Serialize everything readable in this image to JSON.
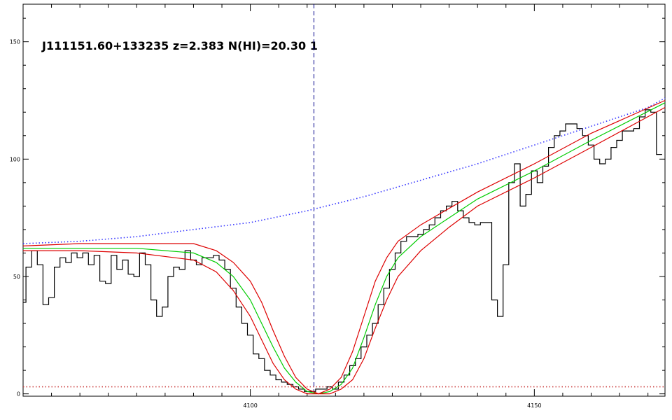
{
  "chart_data": {
    "type": "line",
    "title": "J111151.60+133235 z=2.383 N(HI)=20.30 1",
    "xlabel": "",
    "ylabel": "",
    "xlim": [
      4060,
      4173
    ],
    "ylim": [
      -1,
      166
    ],
    "grid": false,
    "x_ticks": [
      4100,
      4150
    ],
    "y_ticks": [
      0,
      50,
      100,
      150
    ],
    "marker_line": {
      "x": 4111.2,
      "style": "dashed",
      "color": "#00008b"
    },
    "series": [
      {
        "kind": "flux-histogram",
        "color": "#000000",
        "x": [
          4060,
          4061,
          4062,
          4063,
          4064,
          4065,
          4066,
          4067,
          4068,
          4069,
          4070,
          4071,
          4072,
          4073,
          4074,
          4075,
          4076,
          4077,
          4078,
          4079,
          4080,
          4081,
          4082,
          4083,
          4084,
          4085,
          4086,
          4087,
          4088,
          4089,
          4090,
          4091,
          4092,
          4093,
          4094,
          4095,
          4096,
          4097,
          4098,
          4099,
          4100,
          4101,
          4102,
          4103,
          4104,
          4105,
          4106,
          4107,
          4108,
          4109,
          4110,
          4111,
          4112,
          4113,
          4114,
          4115,
          4116,
          4117,
          4118,
          4119,
          4120,
          4121,
          4122,
          4123,
          4124,
          4125,
          4126,
          4127,
          4128,
          4129,
          4130,
          4131,
          4132,
          4133,
          4134,
          4135,
          4136,
          4137,
          4138,
          4139,
          4140,
          4141,
          4142,
          4143,
          4144,
          4145,
          4146,
          4147,
          4148,
          4149,
          4150,
          4151,
          4152,
          4153,
          4154,
          4155,
          4156,
          4157,
          4158,
          4159,
          4160,
          4161,
          4162,
          4163,
          4164,
          4165,
          4166,
          4167,
          4168,
          4169,
          4170,
          4171,
          4172
        ],
        "y": [
          39,
          54,
          61,
          55,
          38,
          41,
          54,
          58,
          56,
          60,
          58,
          60,
          55,
          59,
          48,
          47,
          59,
          53,
          57,
          51,
          50,
          60,
          55,
          40,
          33,
          37,
          50,
          54,
          53,
          61,
          57,
          55,
          58,
          58,
          59,
          57,
          53,
          45,
          37,
          30,
          25,
          17,
          15,
          10,
          8,
          6,
          5,
          4,
          3,
          2,
          1,
          1,
          2,
          2,
          3,
          2,
          5,
          8,
          12,
          15,
          20,
          25,
          30,
          38,
          45,
          53,
          60,
          65,
          67,
          67,
          68,
          70,
          72,
          75,
          78,
          80,
          82,
          78,
          75,
          73,
          72,
          73,
          73,
          40,
          33,
          55,
          90,
          98,
          80,
          85,
          95,
          90,
          97,
          105,
          110,
          112,
          115,
          115,
          113,
          110,
          106,
          100,
          98,
          100,
          105,
          108,
          112,
          112,
          113,
          118,
          121,
          120,
          102
        ],
        "x_dec": 4060,
        "note": "step histogram of observed flux; values estimated from gridlines"
      },
      {
        "name": "",
        "kind": "continuum",
        "color": "#3333ff",
        "style": "dotted",
        "x": [
          4060,
          4070,
          4080,
          4090,
          4100,
          4110,
          4120,
          4130,
          4140,
          4150,
          4160,
          4170,
          4173
        ],
        "y": [
          64,
          65,
          67,
          70,
          73,
          78,
          84,
          91,
          98,
          106,
          114,
          122,
          126
        ]
      },
      {
        "name": "",
        "kind": "model",
        "color": "#00cc00",
        "style": "solid",
        "x": [
          4060,
          4070,
          4080,
          4090,
          4094,
          4097,
          4100,
          4102,
          4104,
          4106,
          4108,
          4110,
          4112,
          4114,
          4116,
          4118,
          4120,
          4122,
          4124,
          4126,
          4130,
          4135,
          4140,
          4150,
          4160,
          4173
        ],
        "y": [
          62,
          62,
          62,
          60,
          56,
          50,
          40,
          30,
          20,
          11,
          5,
          1,
          0,
          1,
          4,
          11,
          24,
          38,
          50,
          58,
          67,
          75,
          83,
          95,
          108,
          124
        ]
      },
      {
        "name": "",
        "kind": "model-upper",
        "color": "#dd0000",
        "style": "solid",
        "x": [
          4060,
          4070,
          4080,
          4090,
          4094,
          4097,
          4100,
          4102,
          4104,
          4106,
          4108,
          4110,
          4112,
          4114,
          4116,
          4118,
          4120,
          4122,
          4124,
          4126,
          4130,
          4135,
          4140,
          4150,
          4160,
          4173
        ],
        "y": [
          63,
          64,
          64,
          64,
          61,
          56,
          48,
          39,
          27,
          16,
          7,
          2,
          0,
          2,
          7,
          18,
          33,
          48,
          58,
          65,
          72,
          79,
          86,
          98,
          111,
          125
        ]
      },
      {
        "name": "",
        "kind": "model-lower",
        "color": "#dd0000",
        "style": "solid",
        "x": [
          4060,
          4070,
          4080,
          4090,
          4094,
          4097,
          4100,
          4102,
          4104,
          4106,
          4108,
          4110,
          4112,
          4114,
          4116,
          4118,
          4120,
          4122,
          4124,
          4126,
          4130,
          4135,
          4140,
          4150,
          4160,
          4173
        ],
        "y": [
          61,
          61,
          60,
          57,
          52,
          44,
          33,
          23,
          13,
          6,
          2,
          0,
          0,
          0,
          2,
          6,
          15,
          28,
          40,
          50,
          61,
          71,
          80,
          92,
          105,
          122
        ]
      },
      {
        "name": "",
        "kind": "error",
        "color": "#cc4444",
        "style": "dotted",
        "x": [
          4060,
          4173
        ],
        "y": [
          3,
          3
        ]
      }
    ]
  }
}
